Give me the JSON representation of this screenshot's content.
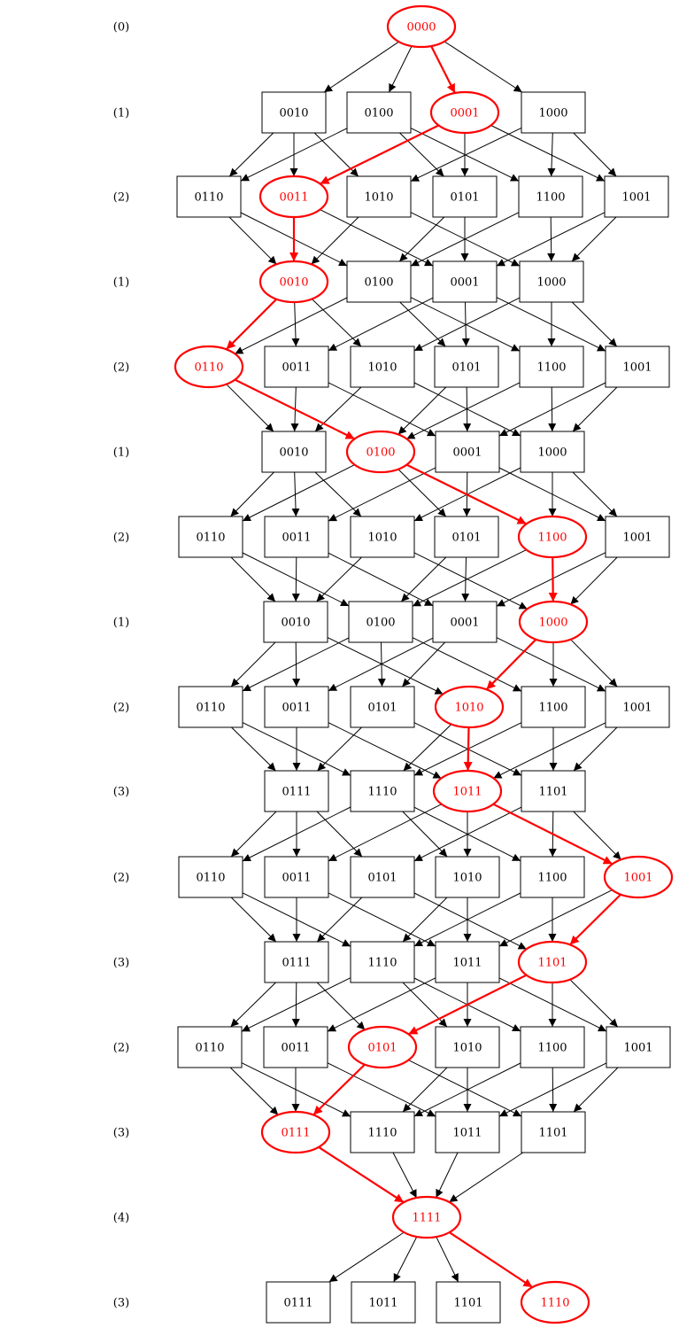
{
  "colors": {
    "highlight": "#ff0000",
    "normal": "#000000",
    "background": "#ffffff"
  },
  "rows": [
    {
      "label": "(0)",
      "nodes": [
        {
          "id": "0000",
          "hl": true
        }
      ]
    },
    {
      "label": "(1)",
      "nodes": [
        {
          "id": "0010"
        },
        {
          "id": "0100"
        },
        {
          "id": "0001",
          "hl": true
        },
        {
          "id": "1000"
        }
      ]
    },
    {
      "label": "(2)",
      "nodes": [
        {
          "id": "0110"
        },
        {
          "id": "0011",
          "hl": true
        },
        {
          "id": "1010"
        },
        {
          "id": "0101"
        },
        {
          "id": "1100"
        },
        {
          "id": "1001"
        }
      ]
    },
    {
      "label": "(1)",
      "nodes": [
        {
          "id": "0010",
          "hl": true
        },
        {
          "id": "0100"
        },
        {
          "id": "0001"
        },
        {
          "id": "1000"
        }
      ]
    },
    {
      "label": "(2)",
      "nodes": [
        {
          "id": "0110",
          "hl": true
        },
        {
          "id": "0011"
        },
        {
          "id": "1010"
        },
        {
          "id": "0101"
        },
        {
          "id": "1100"
        },
        {
          "id": "1001"
        }
      ]
    },
    {
      "label": "(1)",
      "nodes": [
        {
          "id": "0010"
        },
        {
          "id": "0100",
          "hl": true
        },
        {
          "id": "0001"
        },
        {
          "id": "1000"
        }
      ]
    },
    {
      "label": "(2)",
      "nodes": [
        {
          "id": "0110"
        },
        {
          "id": "0011"
        },
        {
          "id": "1010"
        },
        {
          "id": "0101"
        },
        {
          "id": "1100",
          "hl": true
        },
        {
          "id": "1001"
        }
      ]
    },
    {
      "label": "(1)",
      "nodes": [
        {
          "id": "0010"
        },
        {
          "id": "0100"
        },
        {
          "id": "0001"
        },
        {
          "id": "1000",
          "hl": true
        }
      ]
    },
    {
      "label": "(2)",
      "nodes": [
        {
          "id": "0110"
        },
        {
          "id": "0011"
        },
        {
          "id": "0101"
        },
        {
          "id": "1010",
          "hl": true
        },
        {
          "id": "1100"
        },
        {
          "id": "1001"
        }
      ]
    },
    {
      "label": "(3)",
      "nodes": [
        {
          "id": "0111"
        },
        {
          "id": "1110"
        },
        {
          "id": "1011",
          "hl": true
        },
        {
          "id": "1101"
        }
      ]
    },
    {
      "label": "(2)",
      "nodes": [
        {
          "id": "0110"
        },
        {
          "id": "0011"
        },
        {
          "id": "0101"
        },
        {
          "id": "1010"
        },
        {
          "id": "1100"
        },
        {
          "id": "1001",
          "hl": true
        }
      ]
    },
    {
      "label": "(3)",
      "nodes": [
        {
          "id": "0111"
        },
        {
          "id": "1110"
        },
        {
          "id": "1011"
        },
        {
          "id": "1101",
          "hl": true
        }
      ]
    },
    {
      "label": "(2)",
      "nodes": [
        {
          "id": "0110"
        },
        {
          "id": "0011"
        },
        {
          "id": "0101",
          "hl": true
        },
        {
          "id": "1010"
        },
        {
          "id": "1100"
        },
        {
          "id": "1001"
        }
      ]
    },
    {
      "label": "(3)",
      "nodes": [
        {
          "id": "0111",
          "hl": true
        },
        {
          "id": "1110"
        },
        {
          "id": "1011"
        },
        {
          "id": "1101"
        }
      ]
    },
    {
      "label": "(4)",
      "nodes": [
        {
          "id": "1111",
          "hl": true
        }
      ]
    },
    {
      "label": "(3)",
      "nodes": [
        {
          "id": "0111"
        },
        {
          "id": "1011"
        },
        {
          "id": "1101"
        },
        {
          "id": "1110",
          "hl": true
        }
      ]
    }
  ]
}
